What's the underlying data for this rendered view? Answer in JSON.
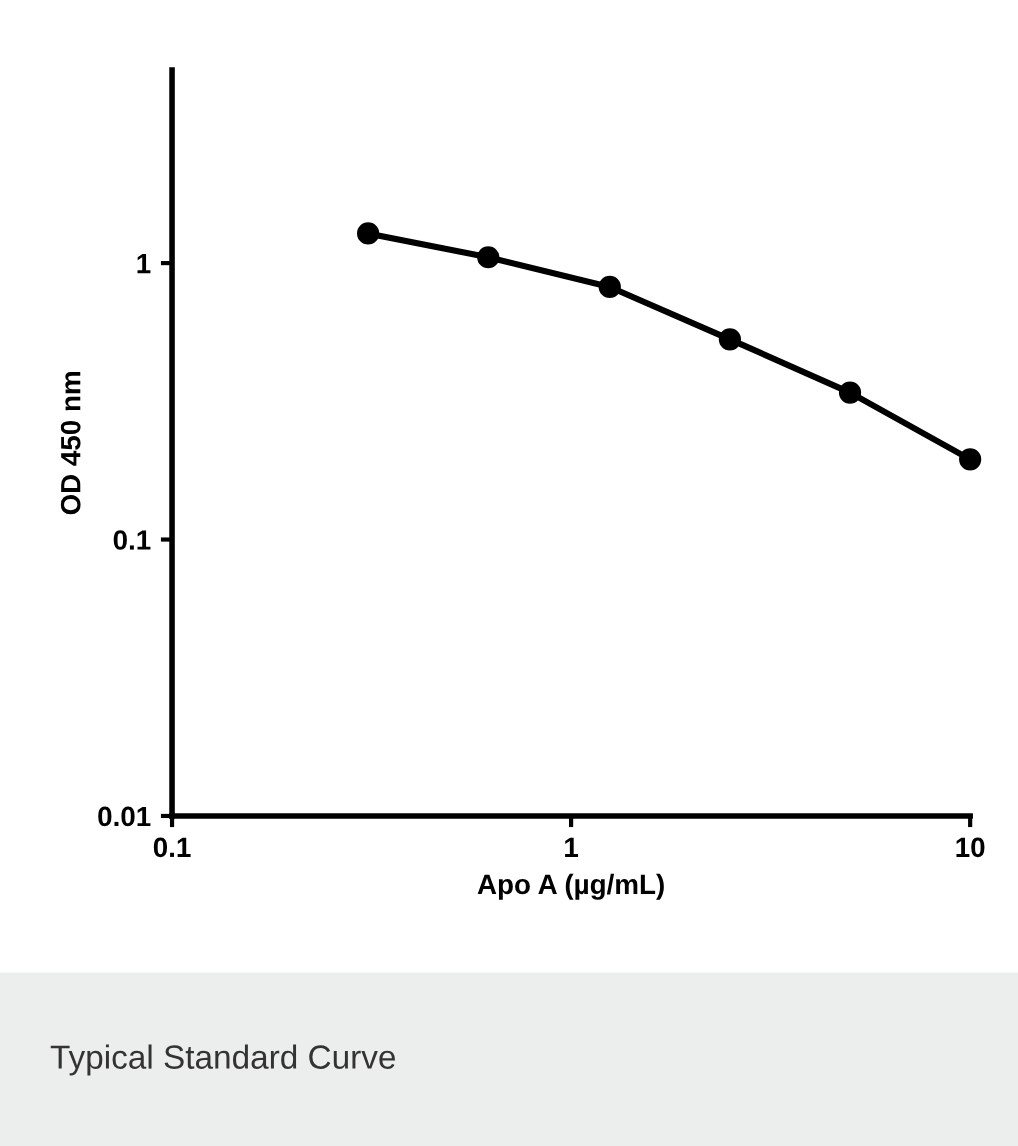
{
  "chart_data": {
    "type": "line",
    "xlabel": "Apo A (µg/mL)",
    "ylabel": "OD 450 nm",
    "x": [
      0.31,
      0.62,
      1.25,
      2.5,
      5,
      10
    ],
    "series": [
      {
        "color": "#000000",
        "values": [
          1.28,
          1.05,
          0.82,
          0.53,
          0.34,
          0.195
        ]
      }
    ],
    "log": "xy",
    "xlim": [
      0.1,
      10
    ],
    "ylim": [
      0.01,
      5
    ],
    "xticks": [
      0.1,
      1,
      10
    ],
    "yticks": [
      0.01,
      0.1,
      1
    ],
    "marker": "circle",
    "line_style": "solid",
    "grid": false,
    "legend": false,
    "annotations": [
      "Typical Standard Curve"
    ]
  }
}
